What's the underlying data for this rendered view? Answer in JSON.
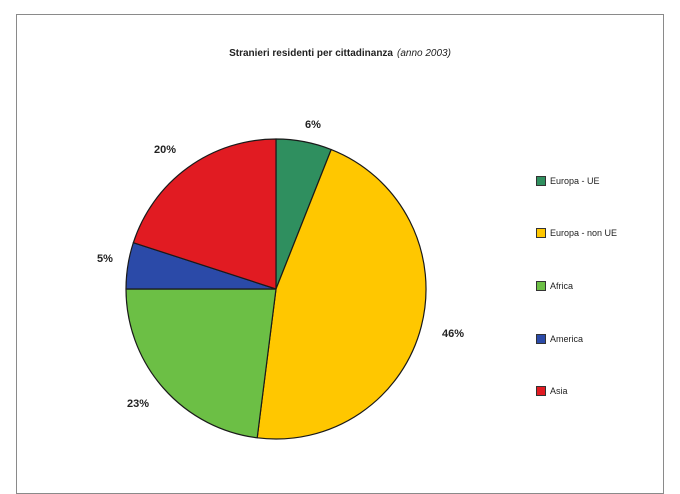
{
  "title": {
    "main": "Stranieri residenti per cittadinanza",
    "sub": "(anno 2003)"
  },
  "chart_data": {
    "type": "pie",
    "title": "Stranieri residenti per cittadinanza (anno 2003)",
    "categories": [
      "Europa - UE",
      "Europa - non UE",
      "Africa",
      "America",
      "Asia"
    ],
    "values": [
      6,
      46,
      23,
      5,
      20
    ],
    "labels": [
      "6%",
      "46%",
      "23%",
      "5%",
      "20%"
    ],
    "colors": [
      "#2f8f5f",
      "#ffc700",
      "#6cbf45",
      "#2b4aa8",
      "#e11b22"
    ],
    "start_angle_deg": 0,
    "direction": "clockwise",
    "legend": "right"
  }
}
